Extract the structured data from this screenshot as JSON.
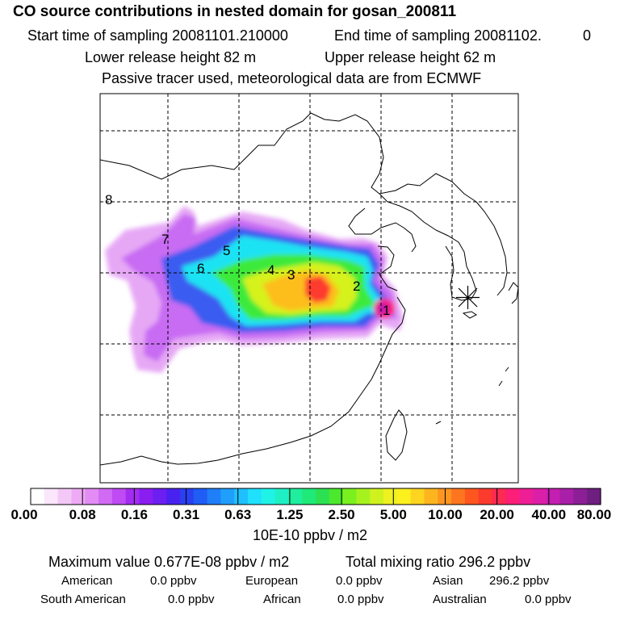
{
  "header": {
    "title": "CO  source contributions in nested domain for gosan_200811",
    "start_label": "Start time of sampling 20081101.210000",
    "end_label": "End time of sampling 20081102.",
    "end_suffix": "0",
    "lower_height": "Lower release height   82 m",
    "upper_height": "Upper release height   62 m",
    "tracer_note": "Passive tracer used, meteorological data are from ECMWF"
  },
  "map": {
    "source_labels": [
      "1",
      "2",
      "3",
      "4",
      "5",
      "6",
      "7",
      "8"
    ],
    "receptor_marker": "receptor-star"
  },
  "colorbar": {
    "tick_labels": [
      "0.00",
      "0.08",
      "0.16",
      "0.31",
      "0.63",
      "1.25",
      "2.50",
      "5.00",
      "10.00",
      "20.00",
      "40.00",
      "80.00"
    ],
    "units": "10E-10 ppbv / m2",
    "colors": [
      "#ffffff",
      "#fbe6fb",
      "#f4c8f6",
      "#eeaaf5",
      "#e28cf4",
      "#d16bf3",
      "#c04af3",
      "#a32cf1",
      "#8a1ef0",
      "#6c1ff0",
      "#4a22f0",
      "#2a3ff0",
      "#1f5df5",
      "#1f7ef8",
      "#1f9ffb",
      "#1fc0fd",
      "#1fe0fd",
      "#1ff3e8",
      "#1ff0c4",
      "#1fee9e",
      "#1fe978",
      "#2ce052",
      "#4be82e",
      "#7af01f",
      "#a6f21f",
      "#cff21f",
      "#eef21f",
      "#fdf01f",
      "#fdd41f",
      "#fdb51f",
      "#fd961f",
      "#fd761f",
      "#fd561f",
      "#fd3a2e",
      "#fd2a52",
      "#fb1f78",
      "#ee1f96",
      "#dc1fa8",
      "#c41fb0",
      "#a91fa8",
      "#8c1f96",
      "#6e1f80"
    ]
  },
  "summary": {
    "max_label": "Maximum value  0.677E-08 ppbv / m2",
    "total_label": "Total mixing ratio      296.2 ppbv",
    "american_label": "American",
    "american_value": "0.0 ppbv",
    "european_label": "European",
    "european_value": "0.0 ppbv",
    "asian_label": "Asian",
    "asian_value": "296.2 ppbv",
    "south_american_label": "South American",
    "south_american_value": "0.0 ppbv",
    "african_label": "African",
    "african_value": "0.0 ppbv",
    "australian_label": "Australian",
    "australian_value": "0.0 ppbv"
  }
}
